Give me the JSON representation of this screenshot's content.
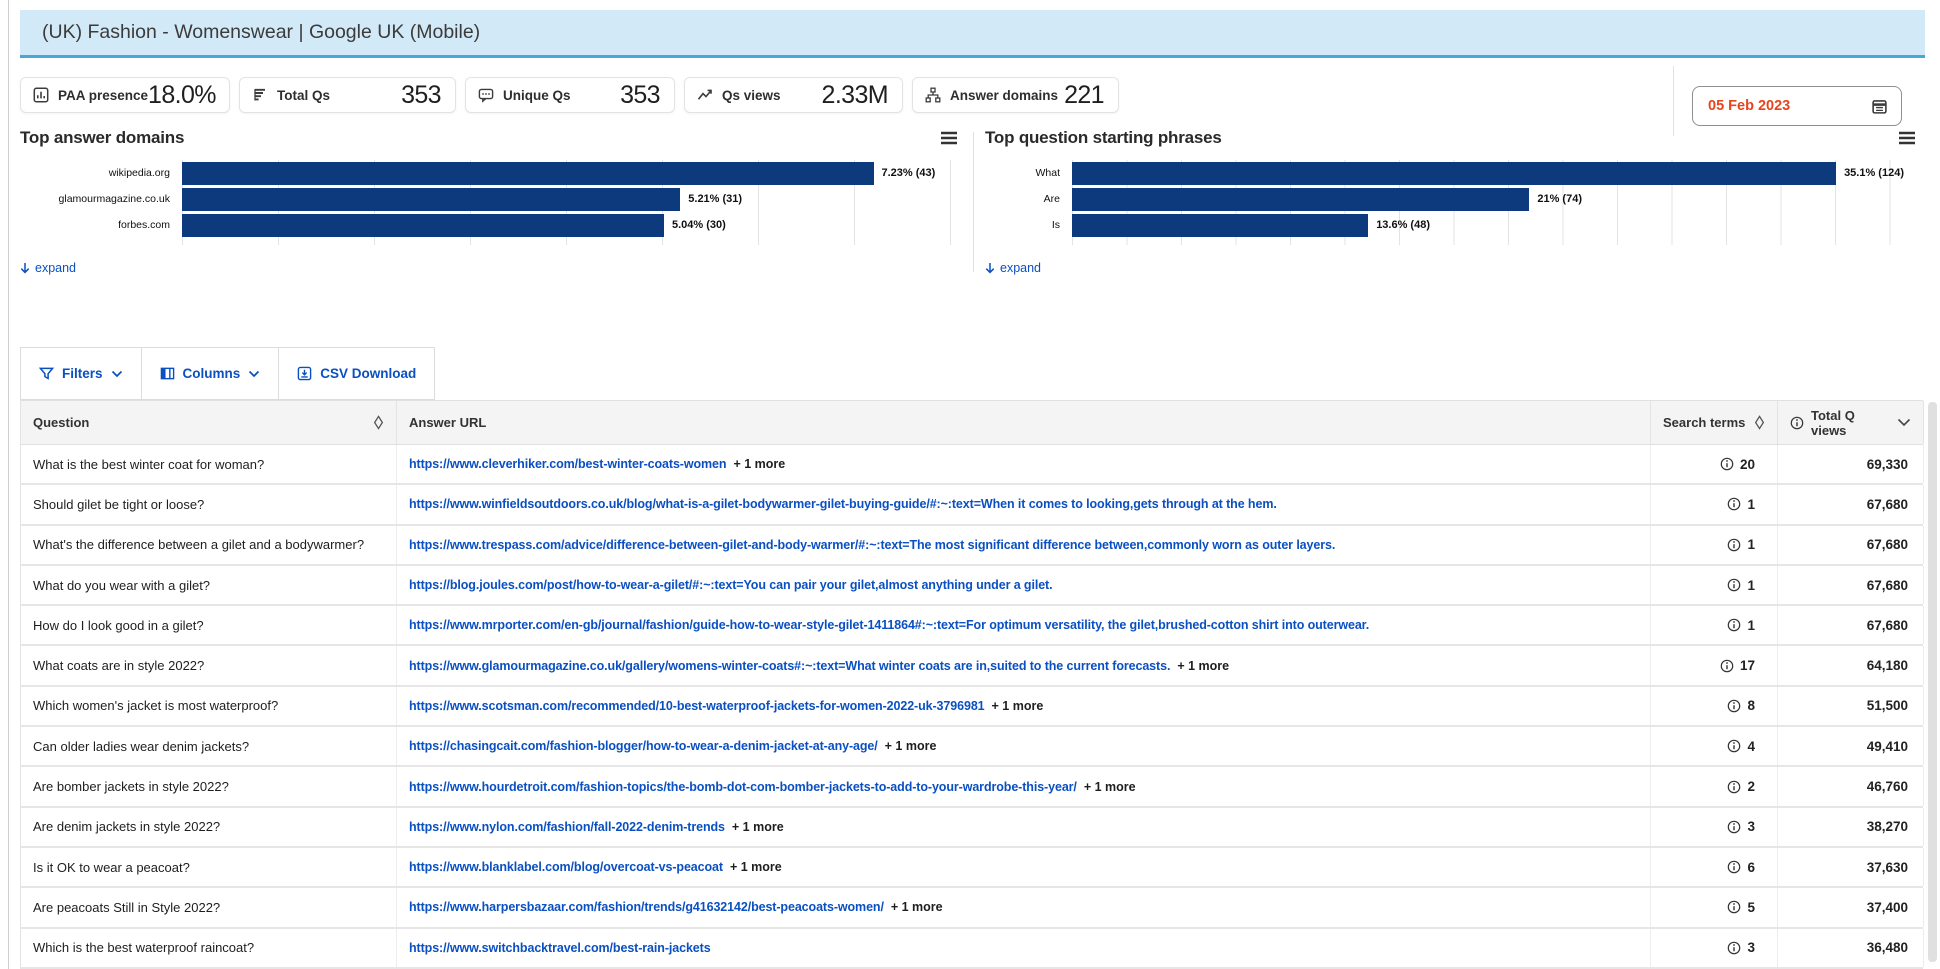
{
  "title_bar": {
    "title": "(UK) Fashion - Womenswear | Google UK (Mobile)"
  },
  "colors": {
    "accent_blue": "#0a50c2",
    "bar_navy": "#0d3a7c",
    "date_orange": "#e8441c",
    "header_bg": "#d2eaf7",
    "header_border": "#47a8d8"
  },
  "stats": [
    {
      "icon": "panel-chart-icon",
      "label": "PAA presence",
      "value": "18.0%"
    },
    {
      "icon": "funnel-bars-icon",
      "label": "Total Qs",
      "value": "353"
    },
    {
      "icon": "comment-icon",
      "label": "Unique Qs",
      "value": "353"
    },
    {
      "icon": "trend-icon",
      "label": "Qs views",
      "value": "2.33M"
    },
    {
      "icon": "sitemap-icon",
      "label": "Answer domains",
      "value": "221"
    }
  ],
  "date_picker": {
    "value": "05 Feb 2023",
    "icon": "calendar-icon"
  },
  "chart_data": [
    {
      "type": "bar",
      "orientation": "horizontal",
      "title": "Top answer domains",
      "categories": [
        "wikipedia.org",
        "glamourmagazine.co.uk",
        "forbes.com"
      ],
      "values": [
        7.23,
        5.21,
        5.04
      ],
      "counts": [
        43,
        31,
        30
      ],
      "labels": [
        "7.23% (43)",
        "5.21% (31)",
        "5.04% (30)"
      ],
      "xlim": [
        0,
        8.03
      ],
      "grid_interval": 1,
      "grid": true,
      "legend": false,
      "expand_label": "expand"
    },
    {
      "type": "bar",
      "orientation": "horizontal",
      "title": "Top question starting phrases",
      "categories": [
        "What",
        "Are",
        "Is"
      ],
      "values": [
        35.1,
        21,
        13.6
      ],
      "counts": [
        124,
        74,
        48
      ],
      "labels": [
        "35.1% (124)",
        "21% (74)",
        "13.6% (48)"
      ],
      "xlim": [
        0,
        38.2
      ],
      "grid_interval": 2.5,
      "grid": true,
      "legend": false,
      "expand_label": "expand"
    }
  ],
  "toolbar": {
    "filters_label": "Filters",
    "columns_label": "Columns",
    "csv_label": "CSV Download"
  },
  "table": {
    "headers": {
      "question": "Question",
      "answer_url": "Answer URL",
      "search_terms": "Search terms",
      "total_q_views": "Total Q views"
    },
    "rows": [
      {
        "question": "What is the best winter coat for woman?",
        "url": "https://www.cleverhiker.com/best-winter-coats-women",
        "more": "+ 1 more",
        "search_terms": "20",
        "total_q_views": "69,330"
      },
      {
        "question": "Should gilet be tight or loose?",
        "url": "https://www.winfieldsoutdoors.co.uk/blog/what-is-a-gilet-bodywarmer-gilet-buying-guide/#:~:text=When it comes to looking,gets through at the hem.",
        "more": "",
        "search_terms": "1",
        "total_q_views": "67,680"
      },
      {
        "question": "What's the difference between a gilet and a bodywarmer?",
        "url": "https://www.trespass.com/advice/difference-between-gilet-and-body-warmer/#:~:text=The most significant difference between,commonly worn as outer layers.",
        "more": "",
        "search_terms": "1",
        "total_q_views": "67,680"
      },
      {
        "question": "What do you wear with a gilet?",
        "url": "https://blog.joules.com/post/how-to-wear-a-gilet/#:~:text=You can pair your gilet,almost anything under a gilet.",
        "more": "",
        "search_terms": "1",
        "total_q_views": "67,680"
      },
      {
        "question": "How do I look good in a gilet?",
        "url": "https://www.mrporter.com/en-gb/journal/fashion/guide-how-to-wear-style-gilet-1411864#:~:text=For optimum versatility, the gilet,brushed-cotton shirt into outerwear.",
        "more": "",
        "search_terms": "1",
        "total_q_views": "67,680"
      },
      {
        "question": "What coats are in style 2022?",
        "url": "https://www.glamourmagazine.co.uk/gallery/womens-winter-coats#:~:text=What winter coats are in,suited to the current forecasts.",
        "more": "+ 1 more",
        "search_terms": "17",
        "total_q_views": "64,180"
      },
      {
        "question": "Which women's jacket is most waterproof?",
        "url": "https://www.scotsman.com/recommended/10-best-waterproof-jackets-for-women-2022-uk-3796981",
        "more": "+ 1 more",
        "search_terms": "8",
        "total_q_views": "51,500"
      },
      {
        "question": "Can older ladies wear denim jackets?",
        "url": "https://chasingcait.com/fashion-blogger/how-to-wear-a-denim-jacket-at-any-age/",
        "more": "+ 1 more",
        "search_terms": "4",
        "total_q_views": "49,410"
      },
      {
        "question": "Are bomber jackets in style 2022?",
        "url": "https://www.hourdetroit.com/fashion-topics/the-bomb-dot-com-bomber-jackets-to-add-to-your-wardrobe-this-year/",
        "more": "+ 1 more",
        "search_terms": "2",
        "total_q_views": "46,760"
      },
      {
        "question": "Are denim jackets in style 2022?",
        "url": "https://www.nylon.com/fashion/fall-2022-denim-trends",
        "more": "+ 1 more",
        "search_terms": "3",
        "total_q_views": "38,270"
      },
      {
        "question": "Is it OK to wear a peacoat?",
        "url": "https://www.blanklabel.com/blog/overcoat-vs-peacoat",
        "more": "+ 1 more",
        "search_terms": "6",
        "total_q_views": "37,630"
      },
      {
        "question": "Are peacoats Still in Style 2022?",
        "url": "https://www.harpersbazaar.com/fashion/trends/g41632142/best-peacoats-women/",
        "more": "+ 1 more",
        "search_terms": "5",
        "total_q_views": "37,400"
      },
      {
        "question": "Which is the best waterproof raincoat?",
        "url": "https://www.switchbacktravel.com/best-rain-jackets",
        "more": "",
        "search_terms": "3",
        "total_q_views": "36,480"
      }
    ]
  }
}
